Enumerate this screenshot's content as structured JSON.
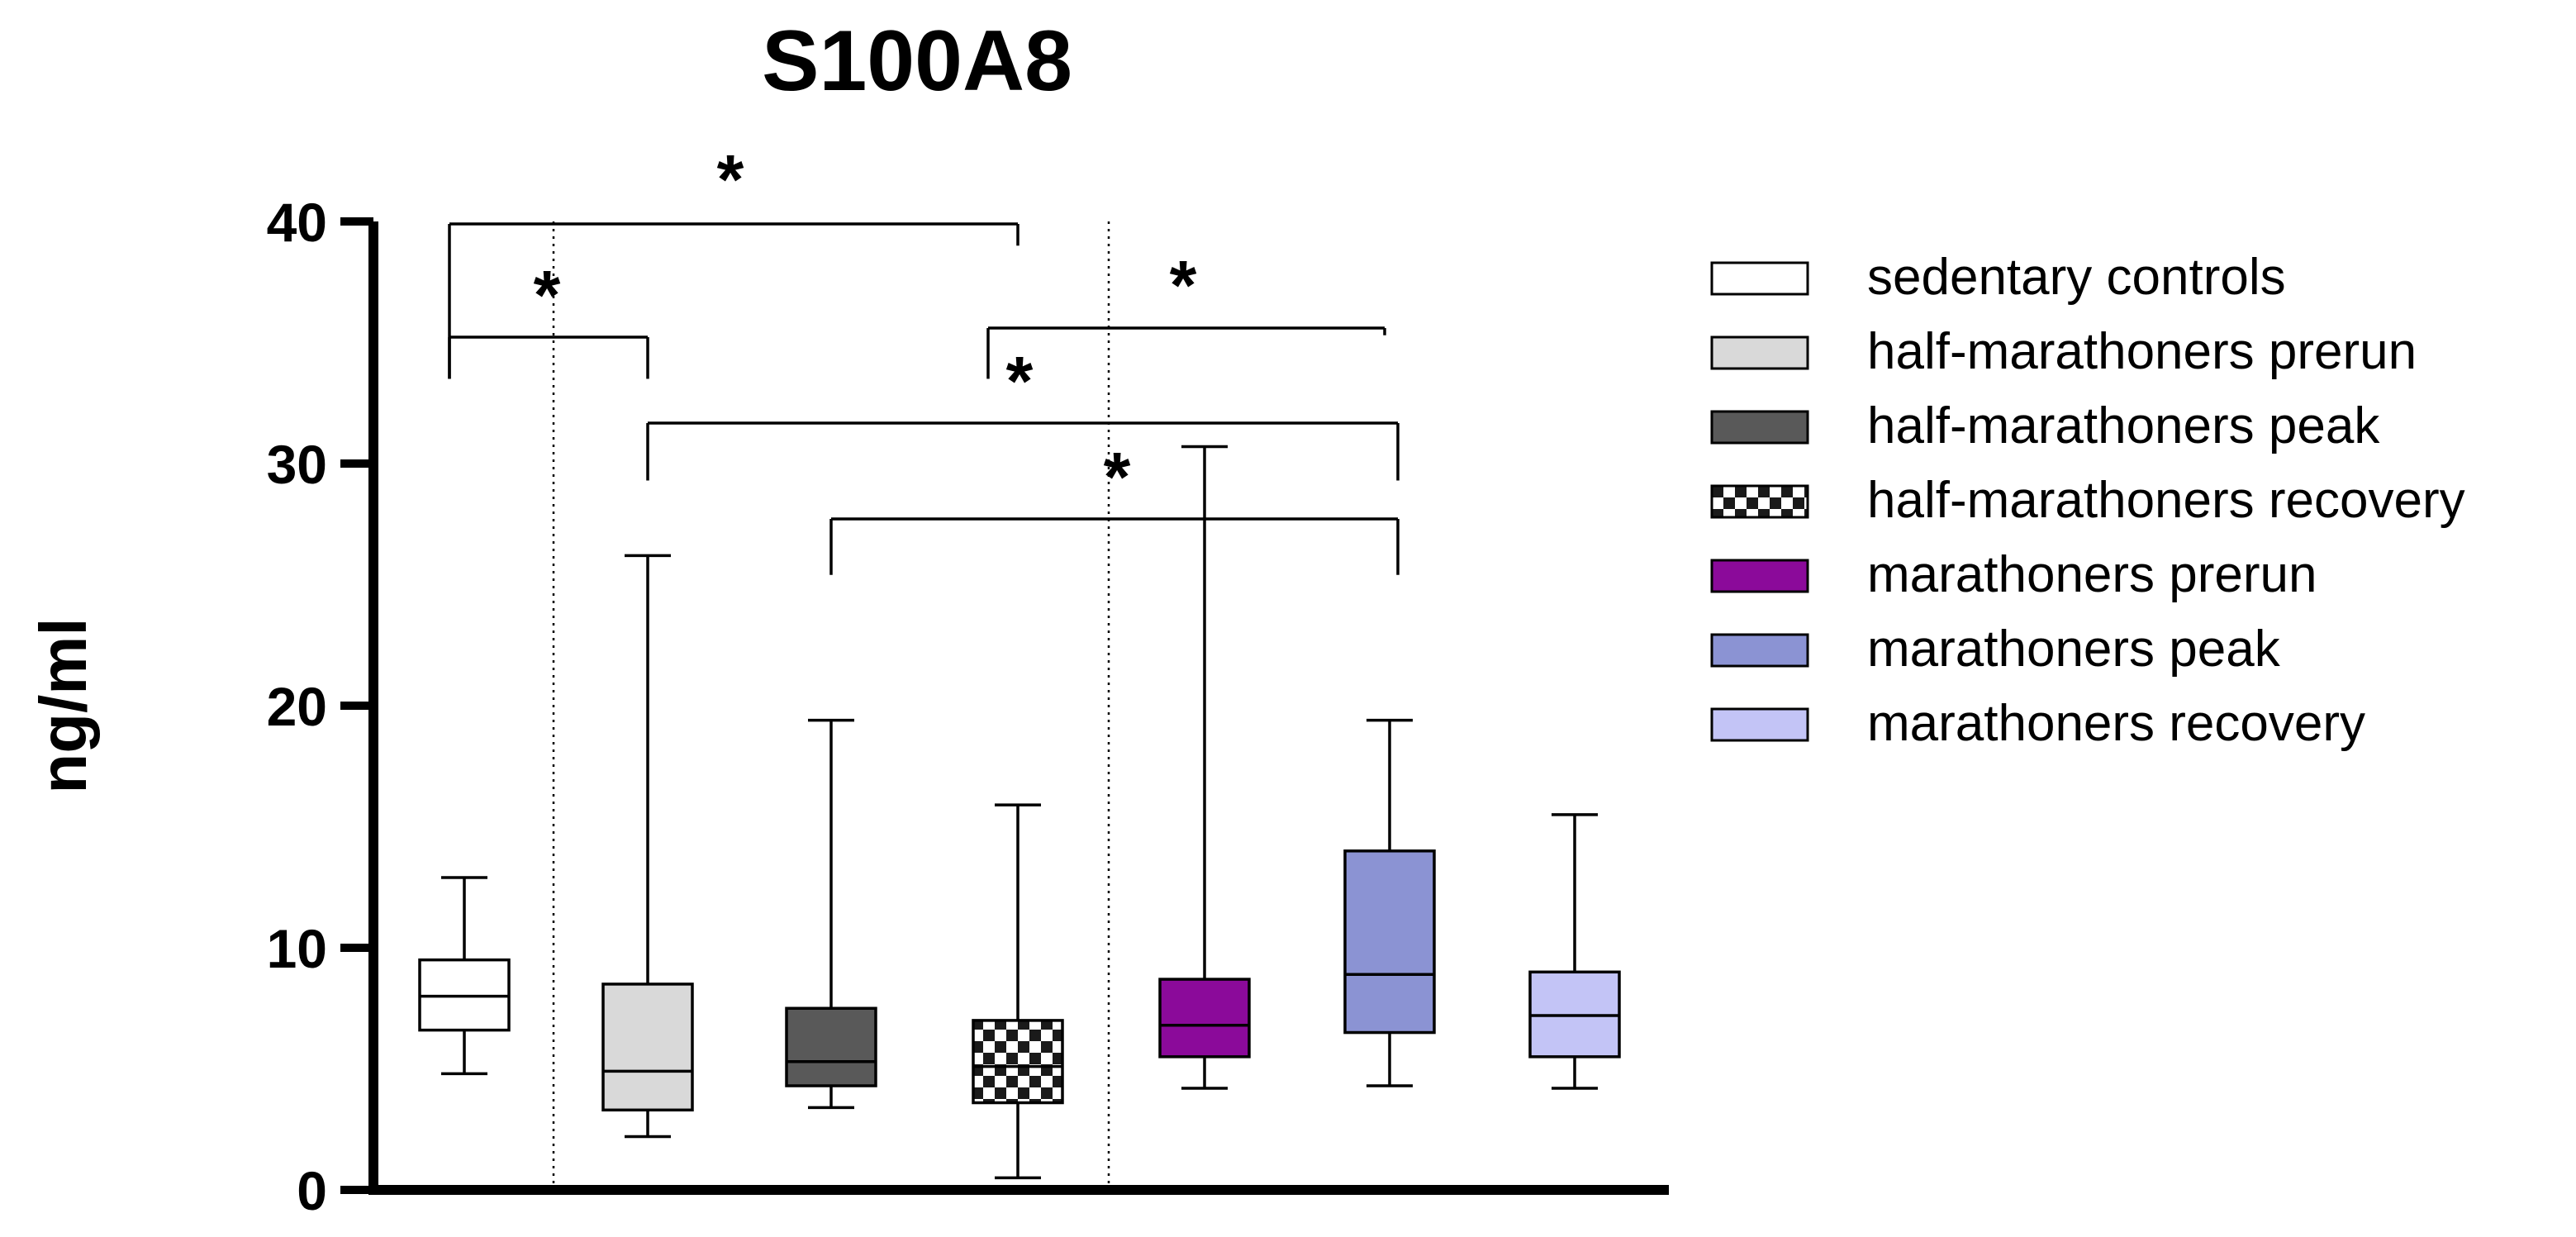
{
  "chart_data": {
    "type": "boxplot",
    "title": "S100A8",
    "xlabel": "",
    "ylabel": "ng/ml",
    "ylim": [
      0,
      40
    ],
    "yticks": [
      0,
      10,
      20,
      30,
      40
    ],
    "series": [
      {
        "name": "sedentary controls",
        "color": "#ffffff",
        "pattern": "none",
        "min": 4.8,
        "q1": 6.6,
        "median": 8.0,
        "q3": 9.5,
        "max": 12.9
      },
      {
        "name": "half-marathoners prerun",
        "color": "#d9d9d9",
        "pattern": "none",
        "min": 2.2,
        "q1": 3.3,
        "median": 4.9,
        "q3": 8.5,
        "max": 26.2
      },
      {
        "name": "half-marathoners peak",
        "color": "#595959",
        "pattern": "none",
        "min": 3.4,
        "q1": 4.3,
        "median": 5.3,
        "q3": 7.5,
        "max": 19.4
      },
      {
        "name": "half-marathoners recovery",
        "color": "#9a9a9a",
        "pattern": "checker",
        "min": 0.5,
        "q1": 3.6,
        "median": 5.1,
        "q3": 7.0,
        "max": 15.9
      },
      {
        "name": "marathoners prerun",
        "color": "#8b0a9a",
        "pattern": "none",
        "min": 4.2,
        "q1": 5.5,
        "median": 6.8,
        "q3": 8.7,
        "max": 30.7
      },
      {
        "name": "marathoners peak",
        "color": "#8b93d3",
        "pattern": "none",
        "min": 4.3,
        "q1": 6.5,
        "median": 8.9,
        "q3": 14.0,
        "max": 19.4
      },
      {
        "name": "marathoners recovery",
        "color": "#c3c4f6",
        "pattern": "none",
        "min": 4.2,
        "q1": 5.5,
        "median": 7.2,
        "q3": 9.0,
        "max": 15.5
      }
    ],
    "significance": [
      {
        "from": 0,
        "to": 3,
        "left_end": 33.5,
        "right_end": 39.0,
        "label": "*"
      },
      {
        "from": 0,
        "to": 1,
        "left_end": 33.5,
        "right_end": 33.5,
        "label": "*"
      },
      {
        "from": 3,
        "to": 5,
        "left_end": 33.5,
        "right_end": 35.3,
        "label": "*"
      },
      {
        "from": 1,
        "to": 5,
        "left_end": 29.3,
        "right_end": 29.3,
        "label": "*"
      },
      {
        "from": 2,
        "to": 5,
        "left_end": 25.4,
        "right_end": 25.4,
        "label": "*"
      }
    ],
    "group_separators": [
      "between sedentary controls and half-marathoners prerun",
      "between half-marathoners recovery and marathoners prerun"
    ],
    "legend_position": "right"
  }
}
